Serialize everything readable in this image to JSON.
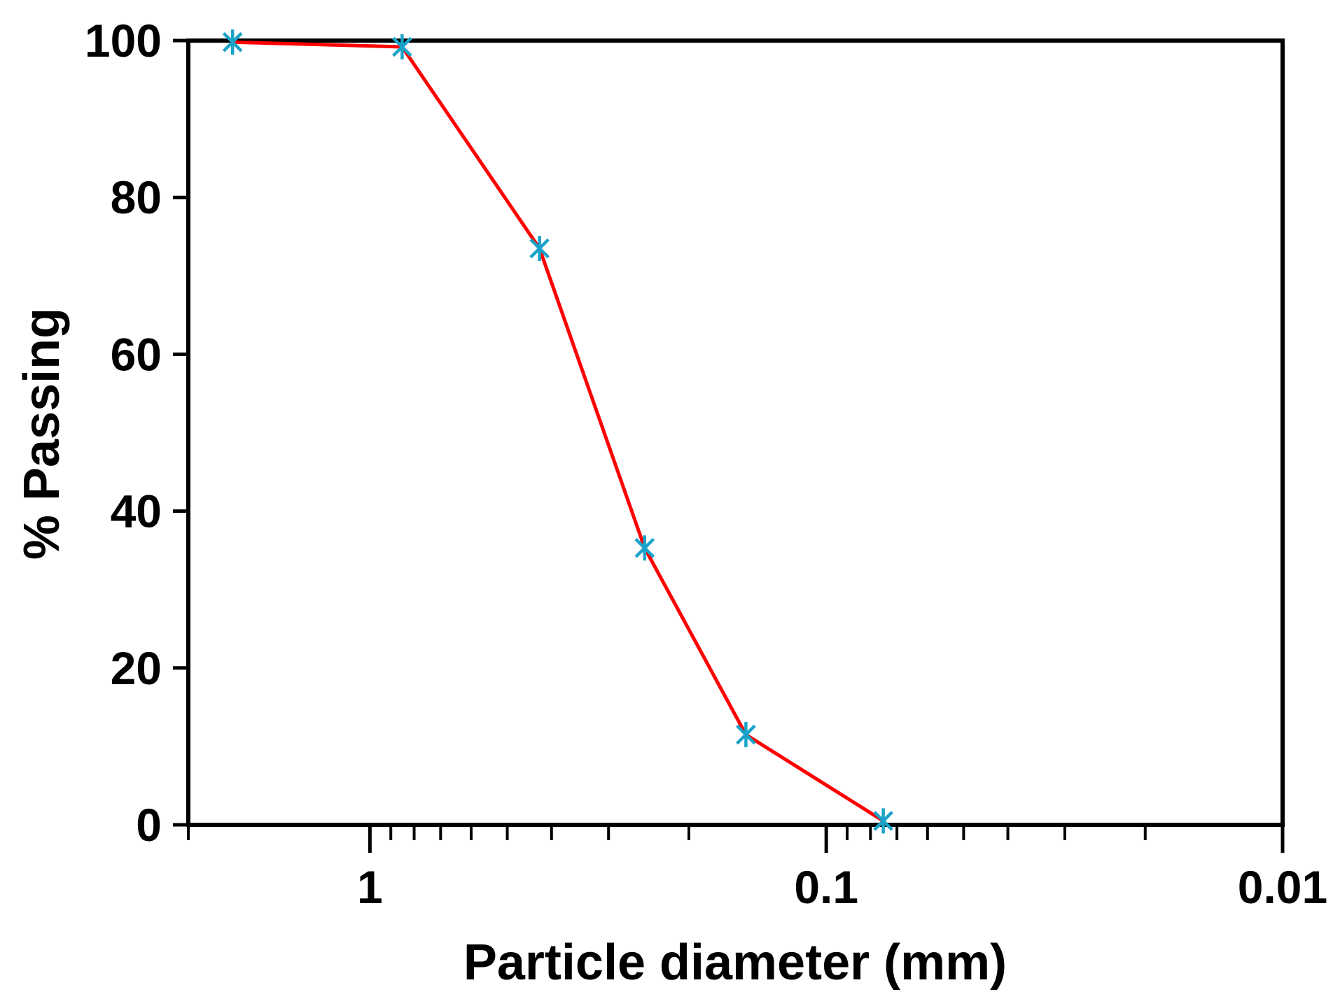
{
  "chart_data": {
    "type": "line",
    "title": "",
    "xlabel": "Particle diameter (mm)",
    "ylabel": "% Passing",
    "x_scale": "log",
    "x_reversed": true,
    "xlim": [
      2.5,
      0.01
    ],
    "ylim": [
      0,
      100
    ],
    "x_ticks": [
      {
        "value": 1,
        "label": "1"
      },
      {
        "value": 0.1,
        "label": "0.1"
      },
      {
        "value": 0.01,
        "label": "0.01"
      }
    ],
    "y_ticks": [
      {
        "value": 0,
        "label": "0"
      },
      {
        "value": 20,
        "label": "20"
      },
      {
        "value": 40,
        "label": "40"
      },
      {
        "value": 60,
        "label": "60"
      },
      {
        "value": 80,
        "label": "80"
      },
      {
        "value": 100,
        "label": "100"
      }
    ],
    "grid": false,
    "legend": "none",
    "series": [
      {
        "line_color": "#ff0000",
        "marker_color": "#1aa3c8",
        "marker": "asterisk",
        "x": [
          2.0,
          0.85,
          0.425,
          0.25,
          0.15,
          0.075
        ],
        "y": [
          99.8,
          99.2,
          73.5,
          35.3,
          11.5,
          0.5
        ]
      }
    ]
  }
}
